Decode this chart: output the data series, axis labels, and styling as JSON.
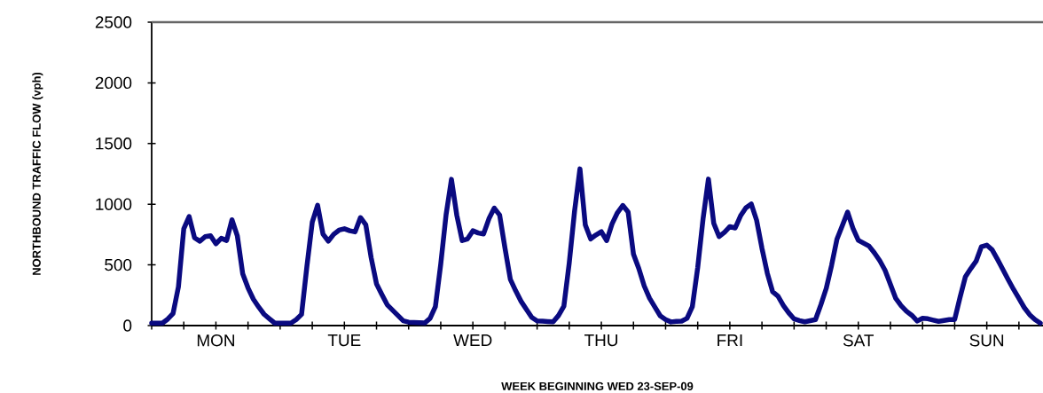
{
  "chart_data": {
    "type": "line",
    "xlabel": "WEEK BEGINNING WED 23-SEP-09",
    "ylabel": "NORTHBOUND TRAFFIC FLOW (vph)",
    "ylim": [
      0,
      2500
    ],
    "yticks": [
      0,
      500,
      1000,
      1500,
      2000,
      2500
    ],
    "categories": [
      null,
      null,
      null,
      null,
      null,
      null,
      null,
      null,
      null,
      null,
      null,
      null,
      "MON",
      null,
      null,
      null,
      null,
      null,
      null,
      null,
      null,
      null,
      null,
      null,
      null,
      null,
      null,
      null,
      null,
      null,
      null,
      null,
      null,
      null,
      null,
      null,
      "TUE",
      null,
      null,
      null,
      null,
      null,
      null,
      null,
      null,
      null,
      null,
      null,
      null,
      null,
      null,
      null,
      null,
      null,
      null,
      null,
      null,
      null,
      null,
      null,
      "WED",
      null,
      null,
      null,
      null,
      null,
      null,
      null,
      null,
      null,
      null,
      null,
      null,
      null,
      null,
      null,
      null,
      null,
      null,
      null,
      null,
      null,
      null,
      null,
      "THU",
      null,
      null,
      null,
      null,
      null,
      null,
      null,
      null,
      null,
      null,
      null,
      null,
      null,
      null,
      null,
      null,
      null,
      null,
      null,
      null,
      null,
      null,
      null,
      "FRI",
      null,
      null,
      null,
      null,
      null,
      null,
      null,
      null,
      null,
      null,
      null,
      null,
      null,
      null,
      null,
      null,
      null,
      null,
      null,
      null,
      null,
      null,
      null,
      "SAT",
      null,
      null,
      null,
      null,
      null,
      null,
      null,
      null,
      null,
      null,
      null,
      null,
      null,
      null,
      null,
      null,
      null,
      null,
      null,
      null,
      null,
      null,
      null,
      "SUN",
      null,
      null,
      null,
      null,
      null,
      null,
      null,
      null,
      null,
      null
    ],
    "grid": false,
    "marker": "none",
    "line_style": "solid",
    "series": [
      {
        "color": "#0a0a80",
        "values": [
          20,
          20,
          20,
          53,
          100,
          320,
          798,
          898,
          724,
          695,
          733,
          740,
          674,
          719,
          701,
          872,
          740,
          428,
          310,
          217,
          152,
          93,
          56,
          20,
          20,
          20,
          20,
          49,
          92,
          489,
          852,
          991,
          754,
          696,
          752,
          786,
          798,
          781,
          772,
          890,
          830,
          559,
          343,
          255,
          171,
          127,
          83,
          39,
          28,
          26,
          24,
          21,
          59,
          156,
          507,
          915,
          1205,
          908,
          700,
          714,
          781,
          763,
          755,
          880,
          968,
          911,
          638,
          381,
          286,
          200,
          133,
          67,
          38,
          36,
          33,
          31,
          83,
          160,
          515,
          944,
          1291,
          829,
          714,
          747,
          773,
          700,
          838,
          930,
          990,
          935,
          588,
          470,
          327,
          226,
          153,
          80,
          49,
          30,
          34,
          37,
          59,
          156,
          478,
          880,
          1207,
          842,
          733,
          768,
          815,
          804,
          904,
          970,
          1002,
          868,
          637,
          432,
          278,
          242,
          166,
          105,
          55,
          41,
          31,
          40,
          49,
          171,
          305,
          495,
          710,
          822,
          935,
          801,
          703,
          679,
          655,
          599,
          535,
          455,
          339,
          223,
          164,
          118,
          84,
          37,
          60,
          56,
          45,
          35,
          42,
          49,
          50,
          232,
          402,
          469,
          530,
          650,
          663,
          624,
          545,
          462,
          378,
          298,
          223,
          148,
          90,
          49,
          20
        ]
      }
    ]
  }
}
